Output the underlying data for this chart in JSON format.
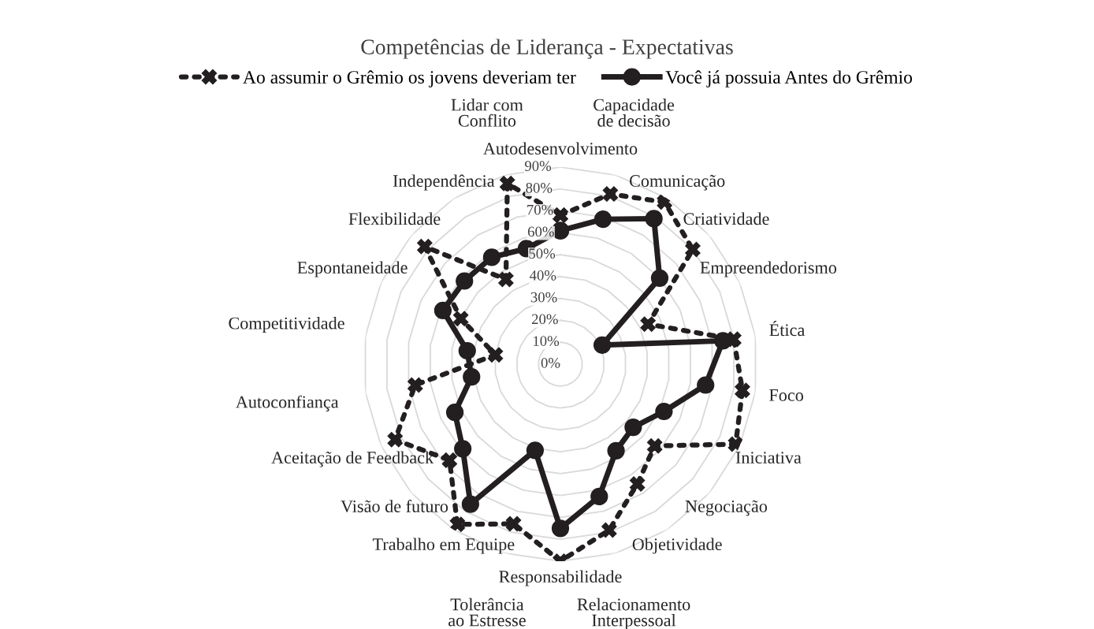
{
  "chart_data": {
    "type": "radar",
    "title": "Competências de Liderança - Expectativas",
    "categories": [
      "Autodesenvolvimento",
      "Capacidade de decisão",
      "Comunicação",
      "Criatividade",
      "Empreendedorismo",
      "Ética",
      "Foco",
      "Iniciativa",
      "Negociação",
      "Objetividade",
      "Relacionamento Interpessoal",
      "Responsabilidade",
      "Tolerância ao Estresse",
      "Trabalho em Equipe",
      "Visão de futuro",
      "Aceitação de Feedback",
      "Autoconfiança",
      "Competitividade",
      "Espontaneidade",
      "Flexibilidade",
      "Independência",
      "Lidar com Conflito"
    ],
    "series": [
      {
        "name": "Ao assumir o Grêmio os jovens deveriam ter",
        "color": "#231f20",
        "line_style": "dotted",
        "marker": "cross",
        "values": [
          68,
          81,
          88,
          80,
          44,
          80,
          84,
          88,
          57,
          65,
          79,
          90,
          76,
          87,
          67,
          83,
          67,
          30,
          50,
          82,
          46,
          86
        ]
      },
      {
        "name": "Você já possuia Antes do Grêmio",
        "color": "#231f20",
        "line_style": "solid",
        "marker": "circle",
        "values": [
          61,
          69,
          79,
          60,
          21,
          75,
          67,
          52,
          44,
          47,
          63,
          75,
          41,
          76,
          59,
          53,
          41,
          43,
          59,
          58,
          58,
          55
        ]
      }
    ],
    "ylim": [
      0,
      90
    ],
    "yticks": [
      {
        "value": 0,
        "label": "0%"
      },
      {
        "value": 10,
        "label": "10%"
      },
      {
        "value": 20,
        "label": "20%"
      },
      {
        "value": 30,
        "label": "30%"
      },
      {
        "value": 40,
        "label": "40%"
      },
      {
        "value": 50,
        "label": "50%"
      },
      {
        "value": 60,
        "label": "60%"
      },
      {
        "value": 70,
        "label": "70%"
      },
      {
        "value": 80,
        "label": "80%"
      },
      {
        "value": 90,
        "label": "90%"
      }
    ],
    "grid": true,
    "legend": "top"
  }
}
